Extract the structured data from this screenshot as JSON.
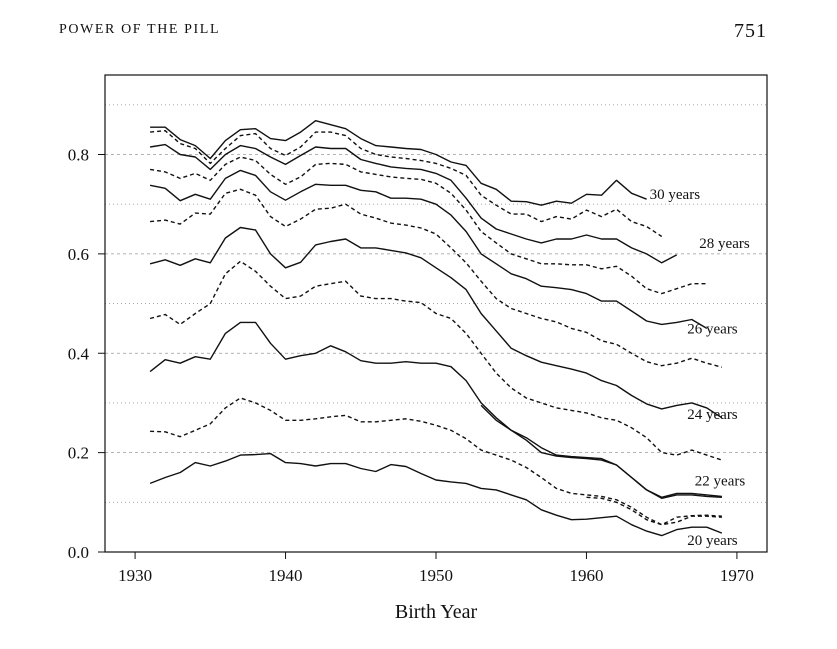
{
  "header": {
    "running_head": "POWER OF THE PILL",
    "page_number": "751"
  },
  "chart_data": {
    "type": "line",
    "xlabel": "Birth Year",
    "ylabel": "",
    "xlim": [
      1928,
      1972
    ],
    "ylim": [
      0,
      0.96
    ],
    "xticks": [
      "1930",
      "1940",
      "1950",
      "1960",
      "1970"
    ],
    "yticks": [
      "0.0",
      "0.2",
      "0.4",
      "0.6",
      "0.8"
    ],
    "grid": "horizontal dotted/dashed at every 0.1",
    "colors": {
      "line": "#111111",
      "grid": "#9a9a9a"
    },
    "series": [
      {
        "name": "20 years",
        "style": "solid",
        "x": [
          1931,
          1932,
          1933,
          1934,
          1935,
          1936,
          1937,
          1938,
          1939,
          1940,
          1941,
          1942,
          1943,
          1944,
          1945,
          1946,
          1947,
          1948,
          1949,
          1950,
          1951,
          1952,
          1953,
          1954,
          1955,
          1956,
          1957,
          1958,
          1959,
          1960,
          1961,
          1962,
          1963,
          1964,
          1965,
          1966,
          1967,
          1968,
          1969
        ],
        "y": [
          0.138,
          0.15,
          0.16,
          0.18,
          0.173,
          0.183,
          0.195,
          0.196,
          0.198,
          0.18,
          0.178,
          0.173,
          0.178,
          0.178,
          0.168,
          0.162,
          0.176,
          0.172,
          0.158,
          0.145,
          0.141,
          0.138,
          0.128,
          0.125,
          0.115,
          0.105,
          0.085,
          0.074,
          0.065,
          0.066,
          0.069,
          0.072,
          0.055,
          0.042,
          0.033,
          0.045,
          0.05,
          0.05,
          0.038
        ]
      },
      {
        "name": "",
        "style": "dashed",
        "x": [
          1960,
          1961,
          1962,
          1963,
          1964,
          1965,
          1966,
          1967,
          1968,
          1969
        ],
        "y": [
          0.11,
          0.108,
          0.1,
          0.085,
          0.065,
          0.055,
          0.07,
          0.073,
          0.074,
          0.072
        ]
      },
      {
        "name": "22 years",
        "style": "solid",
        "x": [
          1953,
          1954,
          1955,
          1956,
          1957,
          1958,
          1959,
          1960,
          1961,
          1962,
          1963,
          1964,
          1965,
          1966,
          1967,
          1968,
          1969
        ],
        "y": [
          0.295,
          0.265,
          0.245,
          0.23,
          0.21,
          0.195,
          0.192,
          0.19,
          0.188,
          0.175,
          0.15,
          0.125,
          0.11,
          0.118,
          0.118,
          0.115,
          0.112
        ]
      },
      {
        "name": "",
        "style": "dashed",
        "x": [
          1931,
          1932,
          1933,
          1934,
          1935,
          1936,
          1937,
          1938,
          1939,
          1940,
          1941,
          1942,
          1943,
          1944,
          1945,
          1946,
          1947,
          1948,
          1949,
          1950,
          1951,
          1952,
          1953,
          1954,
          1955,
          1956,
          1957,
          1958,
          1959,
          1960,
          1961,
          1962,
          1963,
          1964,
          1965,
          1966,
          1967,
          1968,
          1969
        ],
        "y": [
          0.243,
          0.242,
          0.232,
          0.245,
          0.258,
          0.29,
          0.31,
          0.3,
          0.285,
          0.265,
          0.265,
          0.268,
          0.272,
          0.275,
          0.262,
          0.262,
          0.265,
          0.268,
          0.263,
          0.255,
          0.245,
          0.228,
          0.205,
          0.195,
          0.185,
          0.17,
          0.15,
          0.128,
          0.118,
          0.115,
          0.112,
          0.105,
          0.09,
          0.07,
          0.055,
          0.06,
          0.072,
          0.072,
          0.07
        ]
      },
      {
        "name": "24 years",
        "style": "solid",
        "x": [
          1931,
          1932,
          1933,
          1934,
          1935,
          1936,
          1937,
          1938,
          1939,
          1940,
          1941,
          1942,
          1943,
          1944,
          1945,
          1946,
          1947,
          1948,
          1949,
          1950,
          1951,
          1952,
          1953,
          1954,
          1955,
          1956,
          1957,
          1958,
          1959,
          1960,
          1961,
          1962,
          1963,
          1964,
          1965,
          1966,
          1967,
          1968,
          1969
        ],
        "y": [
          0.363,
          0.387,
          0.38,
          0.393,
          0.388,
          0.44,
          0.462,
          0.462,
          0.42,
          0.388,
          0.395,
          0.4,
          0.415,
          0.403,
          0.385,
          0.38,
          0.38,
          0.383,
          0.38,
          0.38,
          0.373,
          0.345,
          0.3,
          0.27,
          0.245,
          0.225,
          0.2,
          0.193,
          0.19,
          0.188,
          0.185,
          0.175,
          0.15,
          0.125,
          0.108,
          0.115,
          0.115,
          0.112,
          0.11
        ]
      },
      {
        "name": "",
        "style": "dashed",
        "x": [
          1931,
          1932,
          1933,
          1934,
          1935,
          1936,
          1937,
          1938,
          1939,
          1940,
          1941,
          1942,
          1943,
          1944,
          1945,
          1946,
          1947,
          1948,
          1949,
          1950,
          1951,
          1952,
          1953,
          1954,
          1955,
          1956,
          1957,
          1958,
          1959,
          1960,
          1961,
          1962,
          1963,
          1964,
          1965,
          1966,
          1967,
          1968,
          1969
        ],
        "y": [
          0.47,
          0.478,
          0.458,
          0.48,
          0.5,
          0.56,
          0.585,
          0.565,
          0.535,
          0.51,
          0.515,
          0.535,
          0.54,
          0.545,
          0.515,
          0.51,
          0.51,
          0.505,
          0.502,
          0.48,
          0.47,
          0.44,
          0.4,
          0.36,
          0.33,
          0.31,
          0.3,
          0.29,
          0.285,
          0.28,
          0.27,
          0.265,
          0.25,
          0.23,
          0.2,
          0.195,
          0.205,
          0.195,
          0.185
        ]
      },
      {
        "name": "26 years",
        "style": "solid",
        "x": [
          1931,
          1932,
          1933,
          1934,
          1935,
          1936,
          1937,
          1938,
          1939,
          1940,
          1941,
          1942,
          1943,
          1944,
          1945,
          1946,
          1947,
          1948,
          1949,
          1950,
          1951,
          1952,
          1953,
          1954,
          1955,
          1956,
          1957,
          1958,
          1959,
          1960,
          1961,
          1962,
          1963,
          1964,
          1965,
          1966,
          1967,
          1968,
          1969
        ],
        "y": [
          0.58,
          0.588,
          0.577,
          0.59,
          0.582,
          0.632,
          0.653,
          0.648,
          0.6,
          0.572,
          0.583,
          0.618,
          0.625,
          0.63,
          0.612,
          0.612,
          0.607,
          0.602,
          0.592,
          0.572,
          0.552,
          0.528,
          0.48,
          0.445,
          0.41,
          0.395,
          0.382,
          0.375,
          0.368,
          0.36,
          0.345,
          0.335,
          0.315,
          0.298,
          0.288,
          0.295,
          0.3,
          0.29,
          0.27
        ]
      },
      {
        "name": "",
        "style": "dashed",
        "x": [
          1931,
          1932,
          1933,
          1934,
          1935,
          1936,
          1937,
          1938,
          1939,
          1940,
          1941,
          1942,
          1943,
          1944,
          1945,
          1946,
          1947,
          1948,
          1949,
          1950,
          1951,
          1952,
          1953,
          1954,
          1955,
          1956,
          1957,
          1958,
          1959,
          1960,
          1961,
          1962,
          1963,
          1964,
          1965,
          1966,
          1967,
          1968,
          1969
        ],
        "y": [
          0.665,
          0.668,
          0.66,
          0.682,
          0.68,
          0.722,
          0.73,
          0.718,
          0.675,
          0.655,
          0.67,
          0.69,
          0.692,
          0.7,
          0.68,
          0.672,
          0.662,
          0.658,
          0.652,
          0.64,
          0.612,
          0.582,
          0.545,
          0.51,
          0.49,
          0.48,
          0.47,
          0.463,
          0.45,
          0.442,
          0.425,
          0.418,
          0.4,
          0.383,
          0.375,
          0.38,
          0.39,
          0.38,
          0.372
        ]
      },
      {
        "name": "",
        "style": "solid",
        "x": [
          1931,
          1932,
          1933,
          1934,
          1935,
          1936,
          1937,
          1938,
          1939,
          1940,
          1941,
          1942,
          1943,
          1944,
          1945,
          1946,
          1947,
          1948,
          1949,
          1950,
          1951,
          1952,
          1953,
          1954,
          1955,
          1956,
          1957,
          1958,
          1959,
          1960,
          1961,
          1962,
          1963,
          1964,
          1965,
          1966,
          1967,
          1968
        ],
        "y": [
          0.738,
          0.732,
          0.707,
          0.72,
          0.71,
          0.752,
          0.768,
          0.758,
          0.725,
          0.708,
          0.725,
          0.74,
          0.738,
          0.738,
          0.728,
          0.725,
          0.712,
          0.712,
          0.71,
          0.7,
          0.678,
          0.645,
          0.6,
          0.58,
          0.56,
          0.55,
          0.535,
          0.532,
          0.528,
          0.52,
          0.505,
          0.505,
          0.485,
          0.465,
          0.458,
          0.462,
          0.468,
          0.45
        ]
      },
      {
        "name": "",
        "style": "dashed",
        "x": [
          1931,
          1932,
          1933,
          1934,
          1935,
          1936,
          1937,
          1938,
          1939,
          1940,
          1941,
          1942,
          1943,
          1944,
          1945,
          1946,
          1947,
          1948,
          1949,
          1950,
          1951,
          1952,
          1953,
          1954,
          1955,
          1956,
          1957,
          1958,
          1959,
          1960,
          1961,
          1962,
          1963,
          1964,
          1965,
          1966,
          1967,
          1968
        ],
        "y": [
          0.77,
          0.765,
          0.752,
          0.762,
          0.748,
          0.78,
          0.795,
          0.788,
          0.76,
          0.74,
          0.755,
          0.78,
          0.782,
          0.78,
          0.765,
          0.76,
          0.755,
          0.752,
          0.75,
          0.742,
          0.722,
          0.688,
          0.645,
          0.622,
          0.6,
          0.59,
          0.58,
          0.58,
          0.578,
          0.578,
          0.57,
          0.575,
          0.555,
          0.53,
          0.52,
          0.53,
          0.54,
          0.54
        ]
      },
      {
        "name": "28 years",
        "style": "solid",
        "x": [
          1931,
          1932,
          1933,
          1934,
          1935,
          1936,
          1937,
          1938,
          1939,
          1940,
          1941,
          1942,
          1943,
          1944,
          1945,
          1946,
          1947,
          1948,
          1949,
          1950,
          1951,
          1952,
          1953,
          1954,
          1955,
          1956,
          1957,
          1958,
          1959,
          1960,
          1961,
          1962,
          1963,
          1964,
          1965,
          1966
        ],
        "y": [
          0.815,
          0.82,
          0.8,
          0.795,
          0.77,
          0.8,
          0.818,
          0.812,
          0.795,
          0.78,
          0.798,
          0.815,
          0.812,
          0.812,
          0.79,
          0.782,
          0.775,
          0.772,
          0.77,
          0.762,
          0.748,
          0.712,
          0.672,
          0.65,
          0.64,
          0.63,
          0.622,
          0.63,
          0.63,
          0.638,
          0.63,
          0.63,
          0.612,
          0.6,
          0.582,
          0.598
        ]
      },
      {
        "name": "",
        "style": "dashed",
        "x": [
          1931,
          1932,
          1933,
          1934,
          1935,
          1936,
          1937,
          1938,
          1939,
          1940,
          1941,
          1942,
          1943,
          1944,
          1945,
          1946,
          1947,
          1948,
          1949,
          1950,
          1951,
          1952,
          1953,
          1954,
          1955,
          1956,
          1957,
          1958,
          1959,
          1960,
          1961,
          1962,
          1963,
          1964,
          1965
        ],
        "y": [
          0.845,
          0.848,
          0.822,
          0.812,
          0.782,
          0.812,
          0.838,
          0.842,
          0.812,
          0.798,
          0.815,
          0.845,
          0.845,
          0.838,
          0.812,
          0.8,
          0.795,
          0.792,
          0.788,
          0.782,
          0.772,
          0.758,
          0.718,
          0.698,
          0.68,
          0.68,
          0.665,
          0.675,
          0.67,
          0.688,
          0.675,
          0.69,
          0.665,
          0.655,
          0.635
        ]
      },
      {
        "name": "30 years",
        "style": "solid",
        "x": [
          1931,
          1932,
          1933,
          1934,
          1935,
          1936,
          1937,
          1938,
          1939,
          1940,
          1941,
          1942,
          1943,
          1944,
          1945,
          1946,
          1947,
          1948,
          1949,
          1950,
          1951,
          1952,
          1953,
          1954,
          1955,
          1956,
          1957,
          1958,
          1959,
          1960,
          1961,
          1962,
          1963,
          1964
        ],
        "y": [
          0.855,
          0.855,
          0.83,
          0.818,
          0.792,
          0.828,
          0.85,
          0.852,
          0.832,
          0.828,
          0.845,
          0.868,
          0.86,
          0.852,
          0.832,
          0.818,
          0.815,
          0.812,
          0.81,
          0.8,
          0.785,
          0.778,
          0.742,
          0.73,
          0.706,
          0.705,
          0.698,
          0.706,
          0.702,
          0.72,
          0.718,
          0.748,
          0.722,
          0.71
        ]
      }
    ],
    "series_labels": [
      {
        "text": "30 years",
        "x": 1964.2,
        "y": 0.71
      },
      {
        "text": "28 years",
        "x": 1967.5,
        "y": 0.612
      },
      {
        "text": "26 years",
        "x": 1966.7,
        "y": 0.44
      },
      {
        "text": "24 years",
        "x": 1966.7,
        "y": 0.268
      },
      {
        "text": "22 years",
        "x": 1967.2,
        "y": 0.134
      },
      {
        "text": "20 years",
        "x": 1966.7,
        "y": 0.014
      }
    ]
  }
}
